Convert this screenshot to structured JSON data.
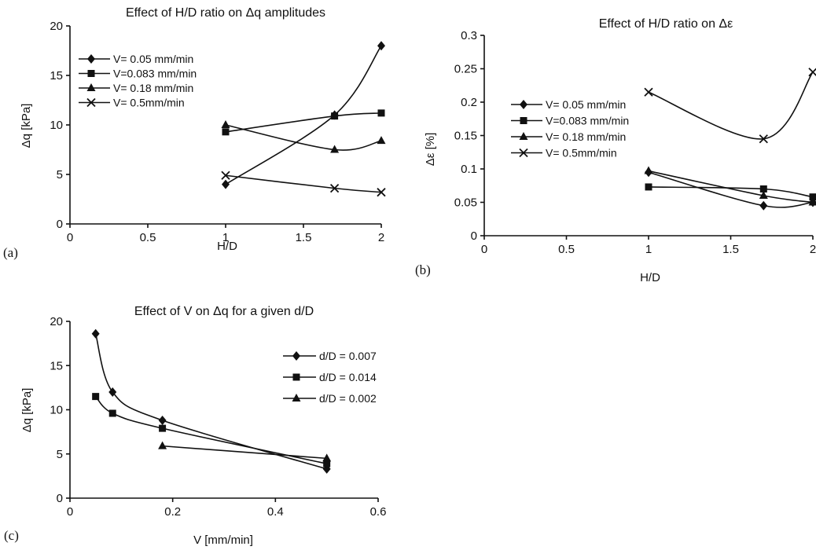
{
  "chart_data": [
    {
      "panel": "(a)",
      "type": "line",
      "title": "Effect of H/D ratio on Δq amplitudes",
      "xlabel": "H/D",
      "ylabel": "Δq [kPa]",
      "xlim": [
        0,
        2
      ],
      "ylim": [
        0,
        20
      ],
      "x_ticks": [
        "0",
        "0.5",
        "1",
        "1.5",
        "2"
      ],
      "y_ticks": [
        "0",
        "5",
        "10",
        "15",
        "20"
      ],
      "legend_position": "top-left",
      "series": [
        {
          "name": "V= 0.05 mm/min",
          "marker": "diamond",
          "x": [
            1,
            1.7,
            2
          ],
          "y": [
            4,
            11,
            18
          ]
        },
        {
          "name": "V=0.083 mm/min",
          "marker": "square",
          "x": [
            1,
            1.7,
            2
          ],
          "y": [
            9.3,
            10.9,
            11.2
          ]
        },
        {
          "name": "V= 0.18 mm/min",
          "marker": "triangle",
          "x": [
            1,
            1.7,
            2
          ],
          "y": [
            10,
            7.5,
            8.4
          ]
        },
        {
          "name": "V= 0.5mm/min",
          "marker": "x",
          "x": [
            1,
            1.7,
            2
          ],
          "y": [
            4.9,
            3.6,
            3.2
          ]
        }
      ]
    },
    {
      "panel": "(b)",
      "type": "line",
      "title": "Effect of H/D ratio on Δε",
      "xlabel": "H/D",
      "ylabel": "Δε [%]",
      "xlim": [
        0,
        2
      ],
      "ylim": [
        0,
        0.3
      ],
      "x_ticks": [
        "0",
        "0.5",
        "1",
        "1.5",
        "2"
      ],
      "y_ticks": [
        "0",
        "0.05",
        "0.1",
        "0.15",
        "0.2",
        "0.25",
        "0.3"
      ],
      "legend_position": "middle-left",
      "series": [
        {
          "name": "V= 0.05 mm/min",
          "marker": "diamond",
          "x": [
            1,
            1.7,
            2
          ],
          "y": [
            0.095,
            0.045,
            0.05
          ]
        },
        {
          "name": "V=0.083 mm/min",
          "marker": "square",
          "x": [
            1,
            1.7,
            2
          ],
          "y": [
            0.073,
            0.07,
            0.058
          ]
        },
        {
          "name": "V= 0.18 mm/min",
          "marker": "triangle",
          "x": [
            1,
            1.7,
            2
          ],
          "y": [
            0.097,
            0.06,
            0.05
          ]
        },
        {
          "name": "V= 0.5mm/min",
          "marker": "x",
          "x": [
            1,
            1.7,
            2
          ],
          "y": [
            0.215,
            0.145,
            0.245
          ]
        }
      ]
    },
    {
      "panel": "(c)",
      "type": "line",
      "title": "Effect of V on Δq for a given d/D",
      "xlabel": "V [mm/min]",
      "ylabel": "Δq [kPa]",
      "xlim": [
        0,
        0.6
      ],
      "ylim": [
        0,
        20
      ],
      "x_ticks": [
        "0",
        "0.2",
        "0.4",
        "0.6"
      ],
      "y_ticks": [
        "0",
        "5",
        "10",
        "15",
        "20"
      ],
      "legend_position": "right",
      "series": [
        {
          "name": "d/D = 0.007",
          "marker": "diamond",
          "x": [
            0.05,
            0.083,
            0.18,
            0.5
          ],
          "y": [
            18.6,
            12,
            8.8,
            3.3
          ]
        },
        {
          "name": "d/D = 0.014",
          "marker": "square",
          "x": [
            0.05,
            0.083,
            0.18,
            0.5
          ],
          "y": [
            11.5,
            9.6,
            7.9,
            3.9
          ]
        },
        {
          "name": "d/D = 0.002",
          "marker": "triangle",
          "x": [
            0.18,
            0.5
          ],
          "y": [
            5.9,
            4.5
          ]
        }
      ]
    }
  ]
}
